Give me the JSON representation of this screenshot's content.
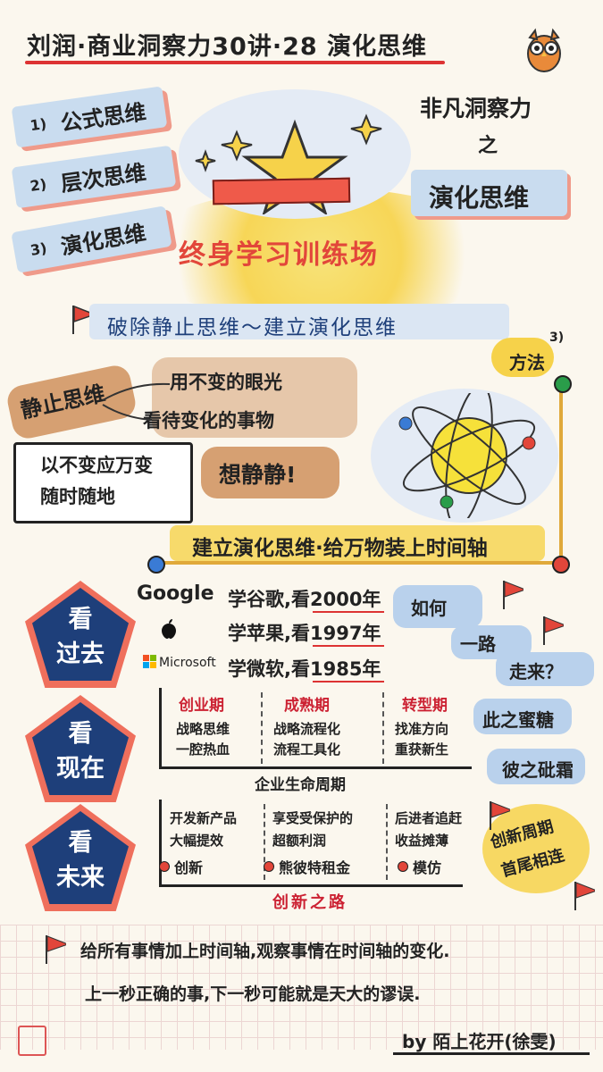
{
  "title": "刘润·商业洞察力30讲·28 演化思维",
  "left_tags": [
    {
      "num": "1)",
      "label": "公式思维"
    },
    {
      "num": "2)",
      "label": "层次思维"
    },
    {
      "num": "3)",
      "label": "演化思维"
    }
  ],
  "right_header": {
    "line1": "非凡洞察力",
    "line2": "之",
    "main": "演化思维"
  },
  "center_title": "终身学习训练场",
  "section_banner": "破除静止思维～建立演化思维",
  "method": {
    "num": "3)",
    "label": "方法"
  },
  "static_thinking": {
    "label": "静止思维",
    "branch1": "用不变的眼光",
    "branch2": "看待变化的事物",
    "box_line1": "以不变应万变",
    "box_line2": "随时随地",
    "result": "想静静!"
  },
  "build_line": "建立演化思维·给万物装上时间轴",
  "past": {
    "label_line1": "看",
    "label_line2": "过去",
    "rows": [
      {
        "brand": "Google",
        "prefix": "学谷歌,看",
        "year": "2000年"
      },
      {
        "brand": "",
        "prefix": "学苹果,看",
        "year": "1997年"
      },
      {
        "brand": "Microsoft",
        "prefix": "学微软,看",
        "year": "1985年"
      }
    ],
    "question": [
      "如何",
      "一路",
      "走来？"
    ]
  },
  "present": {
    "label_line1": "看",
    "label_line2": "现在",
    "phases": [
      {
        "title": "创业期",
        "line1": "战略思维",
        "line2": "一腔热血"
      },
      {
        "title": "成熟期",
        "line1": "战略流程化",
        "line2": "流程工具化"
      },
      {
        "title": "转型期",
        "line1": "找准方向",
        "line2": "重获新生"
      }
    ],
    "axis_label": "企业生命周期",
    "right_notes": [
      "此之蜜糖",
      "彼之砒霜"
    ]
  },
  "future": {
    "label_line1": "看",
    "label_line2": "未来",
    "phases": [
      {
        "line1": "开发新产品",
        "line2": "大幅提效",
        "tag": "创新"
      },
      {
        "line1": "享受受保护的",
        "line2": "超额利润",
        "tag": "熊彼特租金"
      },
      {
        "line1": "后进者追赶",
        "line2": "收益摊薄",
        "tag": "模仿"
      }
    ],
    "axis_label": "创新之路",
    "right_notes": [
      "创新周期",
      "首尾相连"
    ]
  },
  "conclusion": {
    "line1": "给所有事情加上时间轴,观察事情在时间轴的变化.",
    "line2": "上一秒正确的事,下一秒可能就是天大的谬误."
  },
  "author": "by 陌上花开(徐雯)",
  "colors": {
    "navy": "#1e3f7a",
    "red": "#e2463a",
    "yellow": "#f6d24a",
    "lightblue": "#c9dcef"
  }
}
